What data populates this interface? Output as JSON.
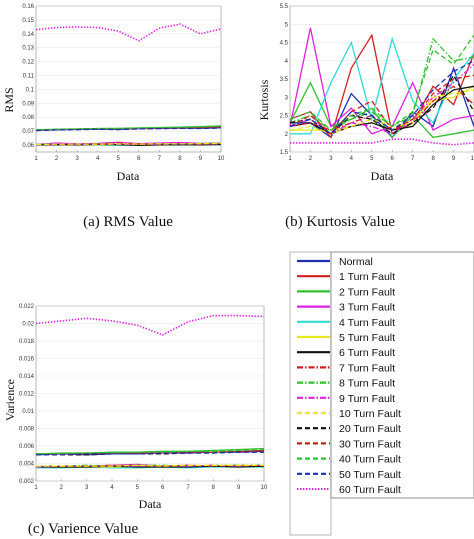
{
  "chart_data": [
    {
      "id": "rms",
      "type": "line",
      "xlabel": "Data",
      "ylabel": "RMS",
      "caption": "(a) RMS Value",
      "xlim": [
        1,
        10
      ],
      "ylim": [
        0.055,
        0.16
      ],
      "x": [
        1,
        2,
        3,
        4,
        5,
        6,
        7,
        8,
        9,
        10
      ],
      "yticks": [
        0.06,
        0.07,
        0.08,
        0.09,
        0.1,
        0.11,
        0.12,
        0.13,
        0.14,
        0.15,
        0.16
      ],
      "series": [
        {
          "name": "Normal",
          "values": [
            0.0705,
            0.071,
            0.0712,
            0.0715,
            0.0713,
            0.0718,
            0.072,
            0.0722,
            0.0721,
            0.0725
          ]
        },
        {
          "name": "1 Turn Fault",
          "values": [
            0.0708,
            0.0712,
            0.0714,
            0.0716,
            0.0717,
            0.0719,
            0.0722,
            0.0724,
            0.0726,
            0.0728
          ]
        },
        {
          "name": "2 Turn Fault",
          "values": [
            0.071,
            0.0713,
            0.0716,
            0.0719,
            0.072,
            0.0723,
            0.0726,
            0.0729,
            0.0732,
            0.0738
          ]
        },
        {
          "name": "3 Turn Fault",
          "values": [
            0.0605,
            0.0615,
            0.0608,
            0.0612,
            0.062,
            0.061,
            0.0615,
            0.0618,
            0.0612,
            0.0614
          ]
        },
        {
          "name": "4 Turn Fault",
          "values": [
            0.0598,
            0.06,
            0.0603,
            0.0601,
            0.0598,
            0.06,
            0.0602,
            0.06,
            0.0601,
            0.0603
          ]
        },
        {
          "name": "5 Turn Fault",
          "values": [
            0.06,
            0.0602,
            0.0601,
            0.0603,
            0.0604,
            0.0602,
            0.0603,
            0.0605,
            0.0604,
            0.0606
          ]
        },
        {
          "name": "6 Turn Fault",
          "values": [
            0.0601,
            0.0603,
            0.0602,
            0.0604,
            0.0603,
            0.0598,
            0.0602,
            0.0603,
            0.0601,
            0.0604
          ]
        },
        {
          "name": "7 Turn Fault",
          "values": [
            0.0603,
            0.0605,
            0.0608,
            0.061,
            0.0615,
            0.0609,
            0.0607,
            0.061,
            0.0608,
            0.0611
          ]
        },
        {
          "name": "8 Turn Fault",
          "values": [
            0.0605,
            0.0607,
            0.0606,
            0.0609,
            0.0607,
            0.0606,
            0.0608,
            0.061,
            0.0612,
            0.0613
          ]
        },
        {
          "name": "9 Turn Fault",
          "values": [
            0.0602,
            0.0604,
            0.0605,
            0.0607,
            0.0606,
            0.0605,
            0.0606,
            0.0608,
            0.0607,
            0.0609
          ]
        },
        {
          "name": "10 Turn Fault",
          "values": [
            0.0604,
            0.0606,
            0.0607,
            0.0606,
            0.0608,
            0.0607,
            0.0609,
            0.0608,
            0.061,
            0.0611
          ]
        },
        {
          "name": "20 Turn Fault",
          "values": [
            0.0706,
            0.0711,
            0.0713,
            0.0714,
            0.0712,
            0.0717,
            0.0719,
            0.0721,
            0.072,
            0.0724
          ]
        },
        {
          "name": "30 Turn Fault",
          "values": [
            0.0707,
            0.0711,
            0.0714,
            0.0716,
            0.0716,
            0.0718,
            0.0721,
            0.0723,
            0.0725,
            0.0727
          ]
        },
        {
          "name": "40 Turn Fault",
          "values": [
            0.0709,
            0.0712,
            0.0715,
            0.0718,
            0.0719,
            0.0722,
            0.0725,
            0.0728,
            0.0731,
            0.0736
          ]
        },
        {
          "name": "50 Turn Fault",
          "values": [
            0.0704,
            0.0709,
            0.0711,
            0.0713,
            0.0712,
            0.0716,
            0.0718,
            0.072,
            0.0719,
            0.0723
          ]
        },
        {
          "name": "60 Turn Fault",
          "values": [
            0.143,
            0.1445,
            0.145,
            0.1445,
            0.142,
            0.135,
            0.144,
            0.147,
            0.14,
            0.1435
          ]
        }
      ]
    },
    {
      "id": "kurtosis",
      "type": "line",
      "xlabel": "Data",
      "ylabel": "Kurtosis",
      "caption": "(b) Kurtosis Value",
      "xlim": [
        1,
        10
      ],
      "ylim": [
        1.5,
        5.5
      ],
      "x": [
        1,
        2,
        3,
        4,
        5,
        6,
        7,
        8,
        9,
        10
      ],
      "yticks": [
        1.5,
        2,
        2.5,
        3,
        3.5,
        4,
        4.5,
        5,
        5.5
      ],
      "series": [
        {
          "name": "Normal",
          "values": [
            2.3,
            2.3,
            1.9,
            3.1,
            2.5,
            1.9,
            2.6,
            2.2,
            3.8,
            2.2
          ]
        },
        {
          "name": "1 Turn Fault",
          "values": [
            2.4,
            2.6,
            1.9,
            3.8,
            4.7,
            2.0,
            2.3,
            3.3,
            2.8,
            4.2
          ]
        },
        {
          "name": "2 Turn Fault",
          "values": [
            2.3,
            3.4,
            2.2,
            2.4,
            2.7,
            1.9,
            2.5,
            1.9,
            2.0,
            2.1
          ]
        },
        {
          "name": "3 Turn Fault",
          "values": [
            2.2,
            4.9,
            2.2,
            2.7,
            2.0,
            2.2,
            3.4,
            2.1,
            2.4,
            2.5
          ]
        },
        {
          "name": "4 Turn Fault",
          "values": [
            2.0,
            2.0,
            3.4,
            4.5,
            2.4,
            4.6,
            2.9,
            2.3,
            3.5,
            4.2
          ]
        },
        {
          "name": "5 Turn Fault",
          "values": [
            2.1,
            2.1,
            2.1,
            2.2,
            2.3,
            2.1,
            2.4,
            2.9,
            3.0,
            3.3
          ]
        },
        {
          "name": "6 Turn Fault",
          "values": [
            2.2,
            2.3,
            2.0,
            2.2,
            2.3,
            2.1,
            2.2,
            2.8,
            3.2,
            3.3
          ]
        },
        {
          "name": "7 Turn Fault",
          "values": [
            2.2,
            2.3,
            2.1,
            2.3,
            2.5,
            2.1,
            2.3,
            2.9,
            3.3,
            2.8
          ]
        },
        {
          "name": "8 Turn Fault",
          "values": [
            2.3,
            2.5,
            2.1,
            2.4,
            2.6,
            2.2,
            2.5,
            4.6,
            4.0,
            4.1
          ]
        },
        {
          "name": "9 Turn Fault",
          "values": [
            2.2,
            2.4,
            2.0,
            2.3,
            2.2,
            2.0,
            2.4,
            3.0,
            3.4,
            3.9
          ]
        },
        {
          "name": "10 Turn Fault",
          "values": [
            2.1,
            2.2,
            2.0,
            2.2,
            2.4,
            2.2,
            2.3,
            3.0,
            3.1,
            3.2
          ]
        },
        {
          "name": "20 Turn Fault",
          "values": [
            2.3,
            2.4,
            2.0,
            2.5,
            2.4,
            2.0,
            2.3,
            2.7,
            3.6,
            2.6
          ]
        },
        {
          "name": "30 Turn Fault",
          "values": [
            2.2,
            2.5,
            2.0,
            2.6,
            2.9,
            2.1,
            2.4,
            3.1,
            3.5,
            3.6
          ]
        },
        {
          "name": "40 Turn Fault",
          "values": [
            2.4,
            2.6,
            2.1,
            2.5,
            2.7,
            2.2,
            2.6,
            4.3,
            3.9,
            4.7
          ]
        },
        {
          "name": "50 Turn Fault",
          "values": [
            2.2,
            2.4,
            2.0,
            2.6,
            2.5,
            2.1,
            2.5,
            3.2,
            3.7,
            4.0
          ]
        },
        {
          "name": "60 Turn Fault",
          "values": [
            1.75,
            1.75,
            1.75,
            1.75,
            1.75,
            1.85,
            1.85,
            1.75,
            1.7,
            1.75
          ]
        }
      ]
    },
    {
      "id": "varience",
      "type": "line",
      "xlabel": "Data",
      "ylabel": "Varience",
      "caption": "(c) Varience Value",
      "xlim": [
        1,
        10
      ],
      "ylim": [
        0.002,
        0.022
      ],
      "x": [
        1,
        2,
        3,
        4,
        5,
        6,
        7,
        8,
        9,
        10
      ],
      "yticks": [
        0.002,
        0.004,
        0.006,
        0.008,
        0.01,
        0.012,
        0.014,
        0.016,
        0.018,
        0.02,
        0.022
      ],
      "series": [
        {
          "name": "Normal",
          "values": [
            0.005,
            0.0051,
            0.005,
            0.0051,
            0.0051,
            0.0052,
            0.0052,
            0.0053,
            0.0053,
            0.0054
          ]
        },
        {
          "name": "1 Turn Fault",
          "values": [
            0.0051,
            0.0051,
            0.0051,
            0.0052,
            0.0052,
            0.0052,
            0.0053,
            0.0053,
            0.0054,
            0.0055
          ]
        },
        {
          "name": "2 Turn Fault",
          "values": [
            0.0051,
            0.0052,
            0.0052,
            0.0053,
            0.0053,
            0.0054,
            0.0054,
            0.0055,
            0.0056,
            0.0057
          ]
        },
        {
          "name": "3 Turn Fault",
          "values": [
            0.0036,
            0.0037,
            0.0037,
            0.0038,
            0.0039,
            0.0037,
            0.0038,
            0.0037,
            0.0038,
            0.0037
          ]
        },
        {
          "name": "4 Turn Fault",
          "values": [
            0.0035,
            0.0035,
            0.0036,
            0.0035,
            0.0035,
            0.0036,
            0.0035,
            0.0036,
            0.0036,
            0.0036
          ]
        },
        {
          "name": "5 Turn Fault",
          "values": [
            0.0036,
            0.0036,
            0.0036,
            0.0036,
            0.0037,
            0.0036,
            0.0037,
            0.0037,
            0.0037,
            0.0037
          ]
        },
        {
          "name": "6 Turn Fault",
          "values": [
            0.0036,
            0.0036,
            0.0036,
            0.0037,
            0.0036,
            0.0036,
            0.0036,
            0.0037,
            0.0036,
            0.0037
          ]
        },
        {
          "name": "7 Turn Fault",
          "values": [
            0.0037,
            0.0037,
            0.0037,
            0.0038,
            0.0038,
            0.0037,
            0.0038,
            0.0037,
            0.0038,
            0.0038
          ]
        },
        {
          "name": "8 Turn Fault",
          "values": [
            0.0037,
            0.0037,
            0.0038,
            0.0037,
            0.0038,
            0.0038,
            0.0037,
            0.0038,
            0.0038,
            0.0038
          ]
        },
        {
          "name": "9 Turn Fault",
          "values": [
            0.0036,
            0.0037,
            0.0037,
            0.0037,
            0.0037,
            0.0037,
            0.0037,
            0.0038,
            0.0037,
            0.0038
          ]
        },
        {
          "name": "10 Turn Fault",
          "values": [
            0.0037,
            0.0037,
            0.0037,
            0.0037,
            0.0038,
            0.0037,
            0.0038,
            0.0038,
            0.0038,
            0.0038
          ]
        },
        {
          "name": "20 Turn Fault",
          "values": [
            0.005,
            0.005,
            0.005,
            0.0051,
            0.0051,
            0.0051,
            0.0052,
            0.0052,
            0.0053,
            0.0053
          ]
        },
        {
          "name": "30 Turn Fault",
          "values": [
            0.005,
            0.0051,
            0.0051,
            0.0051,
            0.0052,
            0.0052,
            0.0052,
            0.0053,
            0.0053,
            0.0054
          ]
        },
        {
          "name": "40 Turn Fault",
          "values": [
            0.0051,
            0.0051,
            0.0052,
            0.0052,
            0.0053,
            0.0053,
            0.0054,
            0.0054,
            0.0055,
            0.0056
          ]
        },
        {
          "name": "50 Turn Fault",
          "values": [
            0.005,
            0.005,
            0.0051,
            0.0051,
            0.0051,
            0.0052,
            0.0052,
            0.0052,
            0.0053,
            0.0053
          ]
        },
        {
          "name": "60 Turn Fault",
          "values": [
            0.02,
            0.0203,
            0.0206,
            0.0203,
            0.0198,
            0.0187,
            0.0202,
            0.0209,
            0.0209,
            0.0208
          ]
        }
      ]
    }
  ],
  "legend": {
    "entries": [
      "Normal",
      "1 Turn Fault",
      "2 Turn Fault",
      "3 Turn Fault",
      "4 Turn Fault",
      "5 Turn Fault",
      "6 Turn Fault",
      "7 Turn Fault",
      "8 Turn Fault",
      "9 Turn Fault",
      "10 Turn Fault",
      "20 Turn Fault",
      "30 Turn Fault",
      "40 Turn Fault",
      "50 Turn Fault",
      "60 Turn Fault"
    ]
  },
  "series_styles": [
    {
      "color": "#1f2fb0",
      "dash": "solid"
    },
    {
      "color": "#d02020",
      "dash": "solid"
    },
    {
      "color": "#30c030",
      "dash": "solid"
    },
    {
      "color": "#e020e0",
      "dash": "solid"
    },
    {
      "color": "#30d8d8",
      "dash": "solid"
    },
    {
      "color": "#e8e820",
      "dash": "solid"
    },
    {
      "color": "#111111",
      "dash": "solid"
    },
    {
      "color": "#d02020",
      "dash": "dashdot"
    },
    {
      "color": "#30c030",
      "dash": "dashdot"
    },
    {
      "color": "#e020e0",
      "dash": "dashdot"
    },
    {
      "color": "#e8e820",
      "dash": "dashed"
    },
    {
      "color": "#111111",
      "dash": "dashed"
    },
    {
      "color": "#d02020",
      "dash": "dashed"
    },
    {
      "color": "#30c030",
      "dash": "dashed"
    },
    {
      "color": "#1f2fb0",
      "dash": "dashed"
    },
    {
      "color": "#e020e0",
      "dash": "dotted"
    }
  ]
}
